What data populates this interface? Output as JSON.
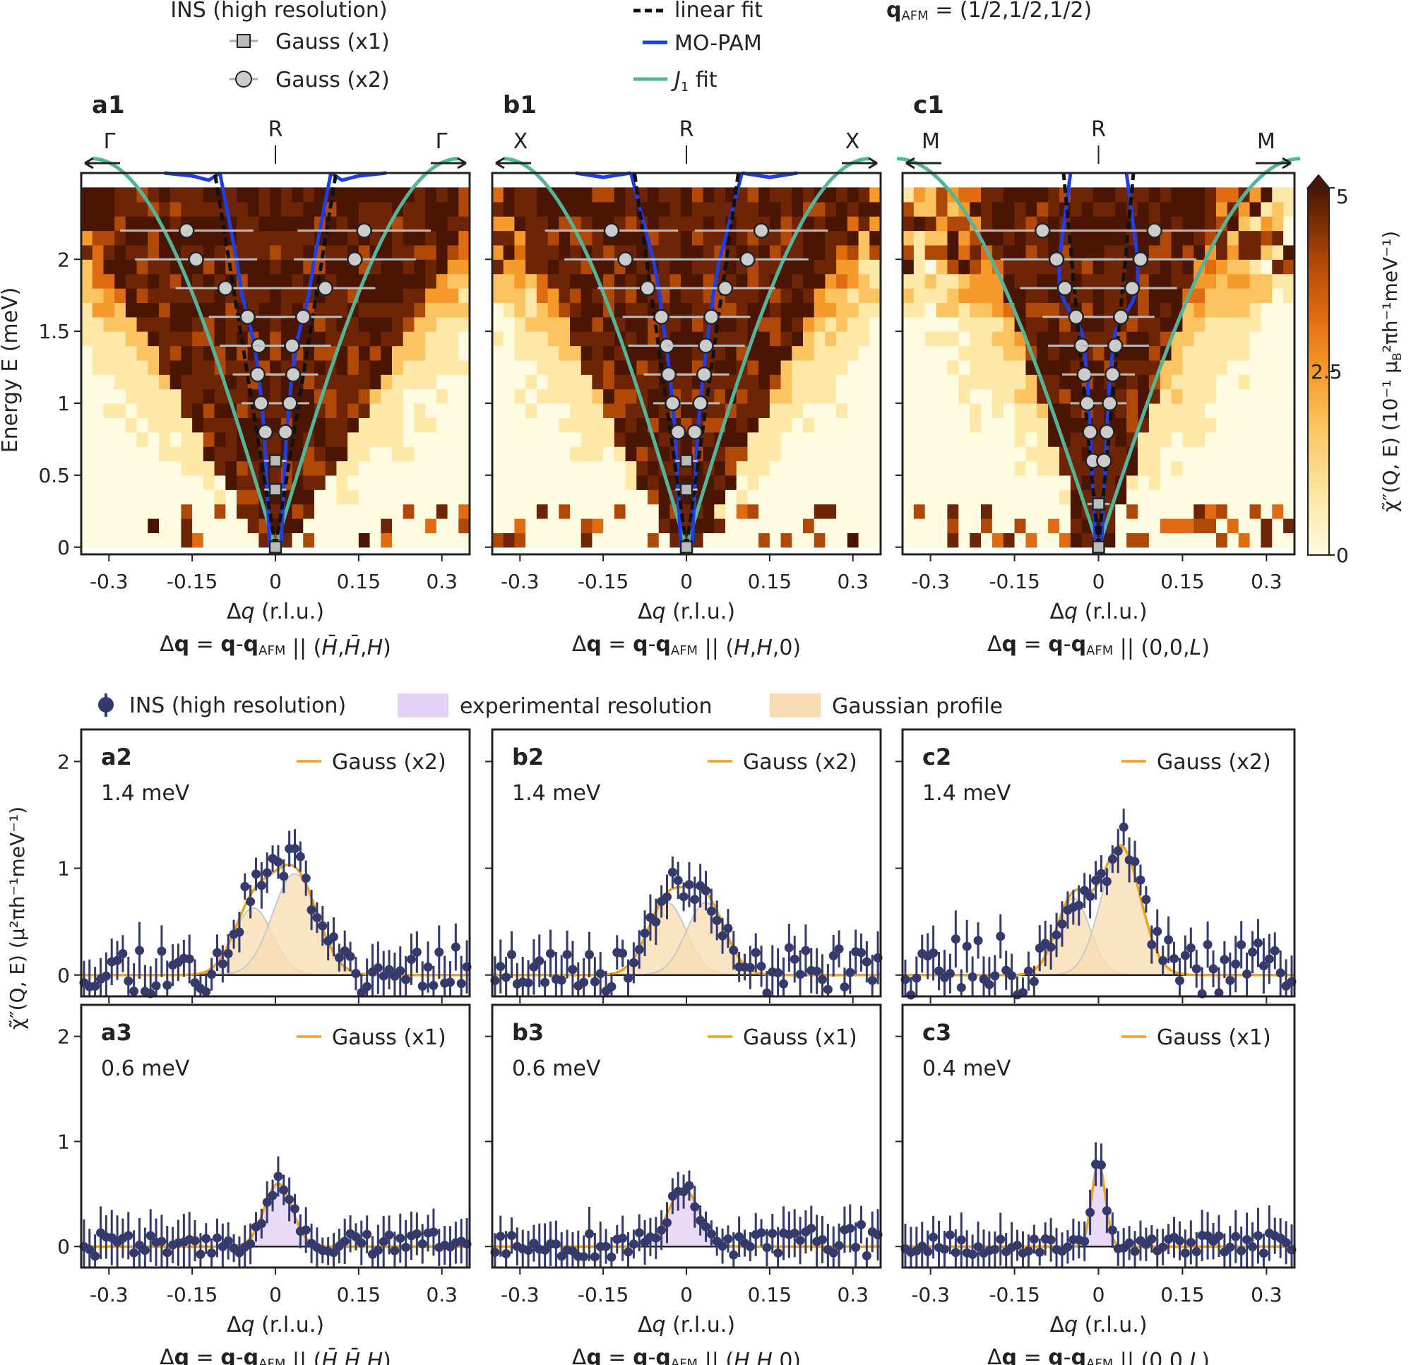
{
  "figure": {
    "legend_top": {
      "title": "INS (high resolution)",
      "gauss_x1": "Gauss (x1)",
      "gauss_x2": "Gauss (x2)",
      "linear_fit": "linear fit",
      "mopam": "MO-PAM",
      "j1_fit_sym": "J",
      "j1_fit_sub": "1",
      "j1_fit_word": " fit",
      "qafm_q": "q",
      "qafm_sub": "AFM",
      "qafm_val": " = (1/2,1/2,1/2)"
    },
    "colorbar": {
      "ticks": [
        "0",
        "2.5",
        "5"
      ],
      "label_main": "χ̃″(Q, E) (10⁻¹ μ",
      "label_tail": "²πh⁻¹meV⁻¹)",
      "colors": [
        "#fffbe0",
        "#fde8a8",
        "#fbc461",
        "#f59a2b",
        "#df6c12",
        "#b04808",
        "#6e2505",
        "#4a1603"
      ]
    },
    "legend_bottom": {
      "ins": "INS (high resolution)",
      "resolution": "experimental resolution",
      "gaussian": "Gaussian profile"
    },
    "ylabel_top": "Energy E (meV)",
    "ylabel_bottom": "χ̃″(Q, E) (μ²πh⁻¹meV⁻¹)",
    "xlabel": "Δq (r.l.u.)",
    "accent_colors": {
      "linear_fit": "#111111",
      "mopam": "#1f3fe6",
      "j1": "#52b59a",
      "gauss_line": "#f2a11c",
      "ins_marker": "#343a6b",
      "gauss_fill": "#f8ddb4",
      "res_fill": "#e3d2f6"
    }
  },
  "chart_data": [
    {
      "id": "a1",
      "type": "heatmap",
      "title": "a1",
      "direction_label": "Δq = q-q_AFM || (H̄,H̄,H)",
      "dir_a": "(",
      "dir_b": "H̄",
      "dir_c": ",",
      "dir_d": "H̄",
      "dir_e": ",",
      "dir_f": "H",
      "dir_g": ")",
      "left_point": "Γ",
      "center_point": "R",
      "right_point": "Γ",
      "point_colors": [
        "#e08a1e",
        "#1f8a1f",
        "#e08a1e"
      ],
      "xlim": [
        -0.35,
        0.35
      ],
      "ylim": [
        -0.05,
        2.6
      ],
      "xticks": [
        -0.3,
        -0.15,
        0,
        0.15,
        0.3
      ],
      "xtick_labels": [
        "-0.3",
        "-0.15",
        "0",
        "0.15",
        "0.3"
      ],
      "yticks": [
        0,
        0.5,
        1,
        1.5,
        2
      ],
      "ytick_labels": [
        "0",
        "0.5",
        "1",
        "1.5",
        "2"
      ],
      "v_slope": 0.14,
      "v_width": 0.03,
      "j1_qmax": 0.33,
      "mopam_half": [
        [
          0.0,
          0.01
        ],
        [
          0.4,
          0.015
        ],
        [
          0.8,
          0.02
        ],
        [
          1.2,
          0.03
        ],
        [
          1.45,
          0.04
        ],
        [
          1.6,
          0.05
        ],
        [
          1.75,
          0.06
        ],
        [
          2.0,
          0.07
        ],
        [
          2.3,
          0.085
        ],
        [
          2.6,
          0.1
        ]
      ],
      "mopam_top": [
        [
          0.1,
          2.6
        ],
        [
          0.12,
          2.55
        ],
        [
          0.15,
          2.58
        ],
        [
          0.2,
          2.6
        ]
      ],
      "gauss_x2": [
        {
          "E": 0.8,
          "q": 0.018,
          "w": 0.0
        },
        {
          "E": 1.0,
          "q": 0.026,
          "w": 0.035
        },
        {
          "E": 1.2,
          "q": 0.032,
          "w": 0.045
        },
        {
          "E": 1.4,
          "q": 0.03,
          "w": 0.07
        },
        {
          "E": 1.6,
          "q": 0.05,
          "w": 0.07
        },
        {
          "E": 1.8,
          "q": 0.09,
          "w": 0.09
        },
        {
          "E": 2.0,
          "q": 0.143,
          "w": 0.11
        },
        {
          "E": 2.2,
          "q": 0.16,
          "w": 0.12
        }
      ],
      "gauss_x1": [
        {
          "E": 0.0,
          "q": 0.0,
          "w": 0.0
        },
        {
          "E": 0.4,
          "q": 0.0,
          "w": 0.02
        },
        {
          "E": 0.6,
          "q": 0.0,
          "w": 0.02
        }
      ]
    },
    {
      "id": "b1",
      "type": "heatmap",
      "title": "b1",
      "direction_label": "Δq = q-q_AFM || (H,H,0)",
      "dir_a": "(",
      "dir_b": "H",
      "dir_c": ",",
      "dir_d": "H",
      "dir_e": ",",
      "dir_f": "0",
      "dir_g": ")",
      "left_point": "X",
      "center_point": "R",
      "right_point": "X",
      "point_colors": [
        "#888888",
        "#1f8a1f",
        "#888888"
      ],
      "xlim": [
        -0.35,
        0.35
      ],
      "ylim": [
        -0.05,
        2.6
      ],
      "xticks": [
        -0.3,
        -0.15,
        0,
        0.15,
        0.3
      ],
      "xtick_labels": [
        "-0.3",
        "-0.15",
        "0",
        "0.15",
        "0.3"
      ],
      "yticks": [
        0,
        0.5,
        1,
        1.5,
        2
      ],
      "ytick_labels": [
        "0",
        "0.5",
        "1",
        "1.5",
        "2"
      ],
      "v_slope": 0.12,
      "v_width": 0.03,
      "j1_qmax": 0.33,
      "mopam_half": [
        [
          0.0,
          0.01
        ],
        [
          0.4,
          0.015
        ],
        [
          0.8,
          0.02
        ],
        [
          1.2,
          0.03
        ],
        [
          1.5,
          0.04
        ],
        [
          1.8,
          0.05
        ],
        [
          2.0,
          0.06
        ],
        [
          2.3,
          0.08
        ],
        [
          2.6,
          0.1
        ]
      ],
      "mopam_top": [
        [
          0.1,
          2.6
        ],
        [
          0.15,
          2.57
        ],
        [
          0.2,
          2.6
        ]
      ],
      "gauss_x2": [
        {
          "E": 0.8,
          "q": 0.015,
          "w": 0.0
        },
        {
          "E": 1.0,
          "q": 0.025,
          "w": 0.035
        },
        {
          "E": 1.2,
          "q": 0.032,
          "w": 0.045
        },
        {
          "E": 1.4,
          "q": 0.035,
          "w": 0.07
        },
        {
          "E": 1.6,
          "q": 0.045,
          "w": 0.07
        },
        {
          "E": 1.8,
          "q": 0.07,
          "w": 0.09
        },
        {
          "E": 2.0,
          "q": 0.11,
          "w": 0.11
        },
        {
          "E": 2.2,
          "q": 0.135,
          "w": 0.12
        }
      ],
      "gauss_x1": [
        {
          "E": 0.0,
          "q": 0.0,
          "w": 0.0
        },
        {
          "E": 0.4,
          "q": 0.0,
          "w": 0.02
        },
        {
          "E": 0.6,
          "q": 0.0,
          "w": 0.02
        }
      ]
    },
    {
      "id": "c1",
      "type": "heatmap",
      "title": "c1",
      "direction_label": "Δq = q-q_AFM || (0,0,L)",
      "dir_a": "(",
      "dir_b": "0",
      "dir_c": ",",
      "dir_d": "0",
      "dir_e": ",",
      "dir_f": "L",
      "dir_g": ")",
      "left_point": "M",
      "center_point": "R",
      "right_point": "M",
      "point_colors": [
        "#e6b800",
        "#1f8a1f",
        "#e6b800"
      ],
      "xlim": [
        -0.35,
        0.35
      ],
      "ylim": [
        -0.05,
        2.6
      ],
      "xticks": [
        -0.3,
        -0.15,
        0,
        0.15,
        0.3
      ],
      "xtick_labels": [
        "-0.3",
        "-0.15",
        "0",
        "0.15",
        "0.3"
      ],
      "yticks": [
        0,
        0.5,
        1,
        1.5,
        2
      ],
      "ytick_labels": [
        "0",
        "0.5",
        "1",
        "1.5",
        "2"
      ],
      "v_slope": 0.08,
      "v_width": 0.02,
      "j1_qmax": 0.36,
      "mopam_half": [
        [
          0.0,
          0.005
        ],
        [
          0.4,
          0.01
        ],
        [
          0.8,
          0.015
        ],
        [
          1.2,
          0.02
        ],
        [
          1.5,
          0.03
        ],
        [
          1.6,
          0.045
        ],
        [
          1.7,
          0.06
        ],
        [
          1.8,
          0.07
        ],
        [
          2.0,
          0.07
        ],
        [
          2.3,
          0.06
        ],
        [
          2.6,
          0.05
        ]
      ],
      "mopam_top": [],
      "gauss_x2": [
        {
          "E": 0.6,
          "q": 0.01,
          "w": 0.0
        },
        {
          "E": 0.8,
          "q": 0.015,
          "w": 0.0
        },
        {
          "E": 1.0,
          "q": 0.02,
          "w": 0.03
        },
        {
          "E": 1.2,
          "q": 0.025,
          "w": 0.04
        },
        {
          "E": 1.4,
          "q": 0.03,
          "w": 0.06
        },
        {
          "E": 1.6,
          "q": 0.04,
          "w": 0.06
        },
        {
          "E": 1.8,
          "q": 0.06,
          "w": 0.08
        },
        {
          "E": 2.0,
          "q": 0.075,
          "w": 0.1
        },
        {
          "E": 2.2,
          "q": 0.1,
          "w": 0.12
        }
      ],
      "gauss_x1": [
        {
          "E": 0.0,
          "q": 0.0,
          "w": 0.0
        },
        {
          "E": 0.3,
          "q": 0.0,
          "w": 0.02
        }
      ]
    },
    {
      "id": "a2",
      "type": "scatter",
      "title": "a2",
      "energy_label": "1.4 meV",
      "legend": "Gauss (x2)",
      "xlim": [
        -0.35,
        0.35
      ],
      "ylim": [
        -0.2,
        2.3
      ],
      "yticks": [
        0,
        1,
        2
      ],
      "ytick_labels": [
        "0",
        "1",
        "2"
      ],
      "fill": "gaussian",
      "peaks": [
        {
          "c": -0.04,
          "a": 0.63,
          "s": 0.035
        },
        {
          "c": 0.035,
          "a": 0.95,
          "s": 0.04
        }
      ],
      "bg": 0.3,
      "seed": 11
    },
    {
      "id": "b2",
      "type": "scatter",
      "title": "b2",
      "energy_label": "1.4 meV",
      "legend": "Gauss (x2)",
      "xlim": [
        -0.35,
        0.35
      ],
      "ylim": [
        -0.2,
        2.3
      ],
      "yticks": [
        0,
        1,
        2
      ],
      "ytick_labels": [
        "0",
        "1",
        "2"
      ],
      "fill": "gaussian",
      "peaks": [
        {
          "c": -0.035,
          "a": 0.68,
          "s": 0.035
        },
        {
          "c": 0.035,
          "a": 0.68,
          "s": 0.035
        }
      ],
      "bg": 0.25,
      "seed": 23
    },
    {
      "id": "c2",
      "type": "scatter",
      "title": "c2",
      "energy_label": "1.4 meV",
      "legend": "Gauss (x2)",
      "xlim": [
        -0.35,
        0.35
      ],
      "ylim": [
        -0.2,
        2.3
      ],
      "yticks": [
        0,
        1,
        2
      ],
      "ytick_labels": [
        "0",
        "1",
        "2"
      ],
      "fill": "gaussian",
      "peaks": [
        {
          "c": -0.045,
          "a": 0.72,
          "s": 0.03
        },
        {
          "c": 0.04,
          "a": 1.2,
          "s": 0.035
        }
      ],
      "bg": 0.35,
      "seed": 37
    },
    {
      "id": "a3",
      "type": "scatter",
      "title": "a3",
      "energy_label": "0.6 meV",
      "legend": "Gauss (x1)",
      "xlim": [
        -0.35,
        0.35
      ],
      "ylim": [
        -0.2,
        2.3
      ],
      "yticks": [
        0,
        1,
        2
      ],
      "ytick_labels": [
        "0",
        "1",
        "2"
      ],
      "fill": "resolution",
      "peaks": [
        {
          "c": 0.005,
          "a": 0.6,
          "s": 0.025
        }
      ],
      "bg": 0.15,
      "seed": 41
    },
    {
      "id": "b3",
      "type": "scatter",
      "title": "b3",
      "energy_label": "0.6 meV",
      "legend": "Gauss (x1)",
      "xlim": [
        -0.35,
        0.35
      ],
      "ylim": [
        -0.2,
        2.3
      ],
      "yticks": [
        0,
        1,
        2
      ],
      "ytick_labels": [
        "0",
        "1",
        "2"
      ],
      "fill": "resolution",
      "peaks": [
        {
          "c": -0.005,
          "a": 0.55,
          "s": 0.028
        }
      ],
      "bg": 0.2,
      "seed": 53
    },
    {
      "id": "c3",
      "type": "scatter",
      "title": "c3",
      "energy_label": "0.4 meV",
      "legend": "Gauss (x1)",
      "xlim": [
        -0.35,
        0.35
      ],
      "ylim": [
        -0.2,
        2.3
      ],
      "yticks": [
        0,
        1,
        2
      ],
      "ytick_labels": [
        "0",
        "1",
        "2"
      ],
      "fill": "resolution",
      "peaks": [
        {
          "c": 0.0,
          "a": 0.8,
          "s": 0.012
        }
      ],
      "bg": 0.12,
      "seed": 67
    }
  ]
}
